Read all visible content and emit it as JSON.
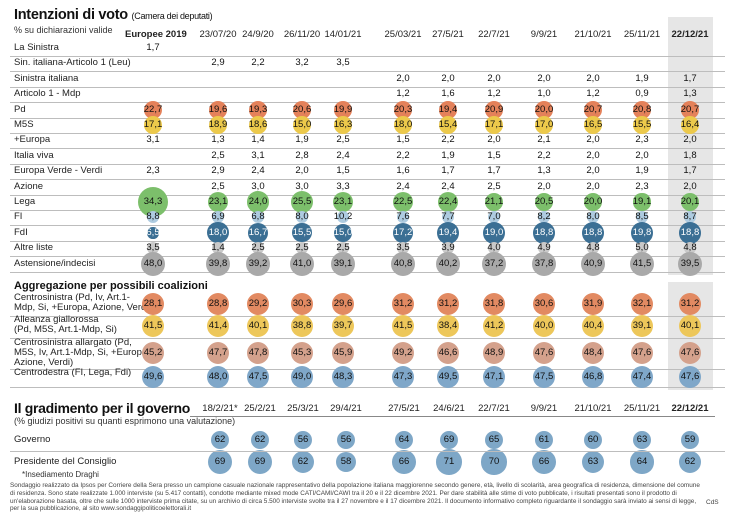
{
  "header": {
    "title": "Intenzioni di voto",
    "title_note": "(Camera dei deputati)",
    "subtitle": "% su dichiarazioni valide"
  },
  "chart_data": {
    "type": "table",
    "columns": [
      "Europee 2019",
      "23/07/20",
      "24/9/20",
      "26/11/20",
      "14/01/21",
      "25/03/21",
      "27/5/21",
      "22/7/21",
      "9/9/21",
      "21/10/21",
      "25/11/21",
      "22/12/21"
    ],
    "rows": [
      {
        "label": "La Sinistra",
        "values": [
          "1,7",
          "",
          "",
          "",
          "",
          "",
          "",
          "",
          "",
          "",
          "",
          ""
        ]
      },
      {
        "label": "Sin. italiana-Articolo 1 (Leu)",
        "values": [
          "",
          "2,9",
          "2,2",
          "3,2",
          "3,5",
          "",
          "",
          "",
          "",
          "",
          "",
          ""
        ]
      },
      {
        "label": "Sinistra italiana",
        "values": [
          "",
          "",
          "",
          "",
          "",
          "2,0",
          "2,0",
          "2,0",
          "2,0",
          "2,0",
          "1,9",
          "1,7"
        ]
      },
      {
        "label": "Articolo 1 - Mdp",
        "values": [
          "",
          "",
          "",
          "",
          "",
          "1,2",
          "1,6",
          "1,2",
          "1,0",
          "1,2",
          "0,9",
          "1,3"
        ]
      },
      {
        "label": "Pd",
        "values": [
          "22,7",
          "19,6",
          "19,3",
          "20,6",
          "19,9",
          "20,3",
          "19,4",
          "20,9",
          "20,0",
          "20,7",
          "20,8",
          "20,7"
        ]
      },
      {
        "label": "M5S",
        "values": [
          "17,1",
          "18,9",
          "18,6",
          "15,0",
          "16,3",
          "18,0",
          "15,4",
          "17,1",
          "17,0",
          "16,5",
          "15,5",
          "16,4"
        ]
      },
      {
        "label": "+Europa",
        "values": [
          "3,1",
          "1,3",
          "1,4",
          "1,9",
          "2,5",
          "1,5",
          "2,2",
          "2,0",
          "2,1",
          "2,0",
          "2,3",
          "2,0"
        ]
      },
      {
        "label": "Italia viva",
        "values": [
          "",
          "2,5",
          "3,1",
          "2,8",
          "2,4",
          "2,2",
          "1,9",
          "1,5",
          "2,2",
          "2,0",
          "2,0",
          "1,8"
        ]
      },
      {
        "label": "Europa Verde - Verdi",
        "values": [
          "2,3",
          "2,9",
          "2,4",
          "2,0",
          "1,5",
          "1,6",
          "1,7",
          "1,7",
          "1,3",
          "2,0",
          "1,9",
          "1,7"
        ]
      },
      {
        "label": "Azione",
        "values": [
          "",
          "2,5",
          "3,0",
          "3,0",
          "3,3",
          "2,4",
          "2,4",
          "2,5",
          "2,0",
          "2,0",
          "2,3",
          "2,0"
        ]
      },
      {
        "label": "Lega",
        "values": [
          "34,3",
          "23,1",
          "24,0",
          "25,5",
          "23,1",
          "22,5",
          "22,4",
          "21,1",
          "20,5",
          "20,0",
          "19,1",
          "20,1"
        ]
      },
      {
        "label": "FI",
        "values": [
          "8,8",
          "6,9",
          "6,8",
          "8,0",
          "10,2",
          "7,6",
          "7,7",
          "7,0",
          "8,2",
          "8,0",
          "8,5",
          "8,7"
        ]
      },
      {
        "label": "FdI",
        "values": [
          "6,5",
          "18,0",
          "16,7",
          "15,5",
          "15,0",
          "17,2",
          "19,4",
          "19,0",
          "18,8",
          "18,8",
          "19,8",
          "18,8"
        ]
      },
      {
        "label": "Altre liste",
        "values": [
          "3,5",
          "1,4",
          "2,5",
          "2,5",
          "2,5",
          "3,5",
          "3,9",
          "4,0",
          "4,9",
          "4,8",
          "5,0",
          "4,8"
        ]
      },
      {
        "label": "Astensione/indecisi",
        "values": [
          "48,0",
          "39,8",
          "39,2",
          "41,0",
          "39,1",
          "40,8",
          "40,2",
          "37,2",
          "37,8",
          "40,9",
          "41,5",
          "39,5"
        ]
      }
    ],
    "coalitions_title": "Aggregazione per possibili coalizioni",
    "coalitions": [
      {
        "label_lines": [
          "Centrosinistra (Pd, Iv, Art.1-",
          "Mdp, Si, +Europa, Azione, Verdi)"
        ],
        "values": [
          "28,1",
          "28,8",
          "29,2",
          "30,3",
          "29,6",
          "31,2",
          "31,2",
          "31,8",
          "30,6",
          "31,9",
          "32,1",
          "31,2"
        ]
      },
      {
        "label_lines": [
          "Alleanza giallorossa",
          "(Pd, M5S, Art.1-Mdp, Si)"
        ],
        "values": [
          "41,5",
          "41,4",
          "40,1",
          "38,8",
          "39,7",
          "41,5",
          "38,4",
          "41,2",
          "40,0",
          "40,4",
          "39,1",
          "40,1"
        ]
      },
      {
        "label_lines": [
          "Centrosinistra allargato (Pd,",
          "M5S, Iv, Art.1-Mdp, Si, +Europa,",
          "Azione, Verdi)"
        ],
        "values": [
          "45,2",
          "47,7",
          "47,8",
          "45,3",
          "45,9",
          "49,2",
          "46,6",
          "48,9",
          "47,6",
          "48,4",
          "47,6",
          "47,6"
        ]
      },
      {
        "label_lines": [
          "Centrodestra (FI, Lega, Fdi)"
        ],
        "values": [
          "49,6",
          "48,0",
          "47,5",
          "49,0",
          "48,3",
          "47,3",
          "49,5",
          "47,1",
          "47,5",
          "46,8",
          "47,4",
          "47,6"
        ]
      }
    ],
    "approval": {
      "title": "Il gradimento per il governo",
      "subtitle": "(% giudizi positivi su quanti esprimono una valutazione)",
      "columns": [
        "18/2/21*",
        "25/2/21",
        "25/3/21",
        "29/4/21",
        "27/5/21",
        "24/6/21",
        "22/7/21",
        "9/9/21",
        "21/10/21",
        "25/11/21",
        "22/12/21"
      ],
      "rows": [
        {
          "label": "Governo",
          "values": [
            "62",
            "62",
            "56",
            "56",
            "64",
            "69",
            "65",
            "61",
            "60",
            "63",
            "59"
          ]
        },
        {
          "label": "Presidente del Consiglio",
          "values": [
            "69",
            "69",
            "62",
            "58",
            "66",
            "71",
            "70",
            "66",
            "63",
            "64",
            "62"
          ]
        }
      ],
      "footnote_mark": "*Insediamento Draghi"
    },
    "colors": {
      "Pd": "#e4815a",
      "M5S": "#ecc94b",
      "Lega": "#7cbf6b",
      "FdI": "#3b6f94",
      "FI": "#aecbe0",
      "Astensione/indecisi": "#a9a9a9",
      "Centrosinistra": "#e28a62",
      "Alleanza giallorossa": "#edc75a",
      "Centrosinistra allargato": "#d4a18c",
      "Centrodestra": "#7fa7c9",
      "Gradimento": "#7ea7c7",
      "highlight": "#e6e6e6"
    }
  },
  "footer": {
    "note": "Sondaggio realizzato da Ipsos per Corriere della Sera presso un campione casuale nazionale rappresentativo della popolazione italiana maggiorenne secondo genere, età, livello di scolarità, area geografica di residenza, dimensione del comune di residenza. Sono state realizzate 1.000 interviste (su 5.417 contatti), condotte mediante mixed mode CATI/CAMI/CAWI tra il 20 e il 22 dicembre 2021. Per dare stabilità alle stime di voto pubblicate, i risultati presentati sono il prodotto di un'elaborazione basata, oltre che sulle 1000 interviste prima citate, su un archivio di circa 5.500 interviste svolte tra il 27 novembre e il 17 dicembre 2021. Il documento informativo completo riguardante il sondaggio sarà inviato ai sensi di legge, per la sua pubblicazione, al sito www.sondaggipoliticoelettorali.it",
    "source": "CdS"
  }
}
